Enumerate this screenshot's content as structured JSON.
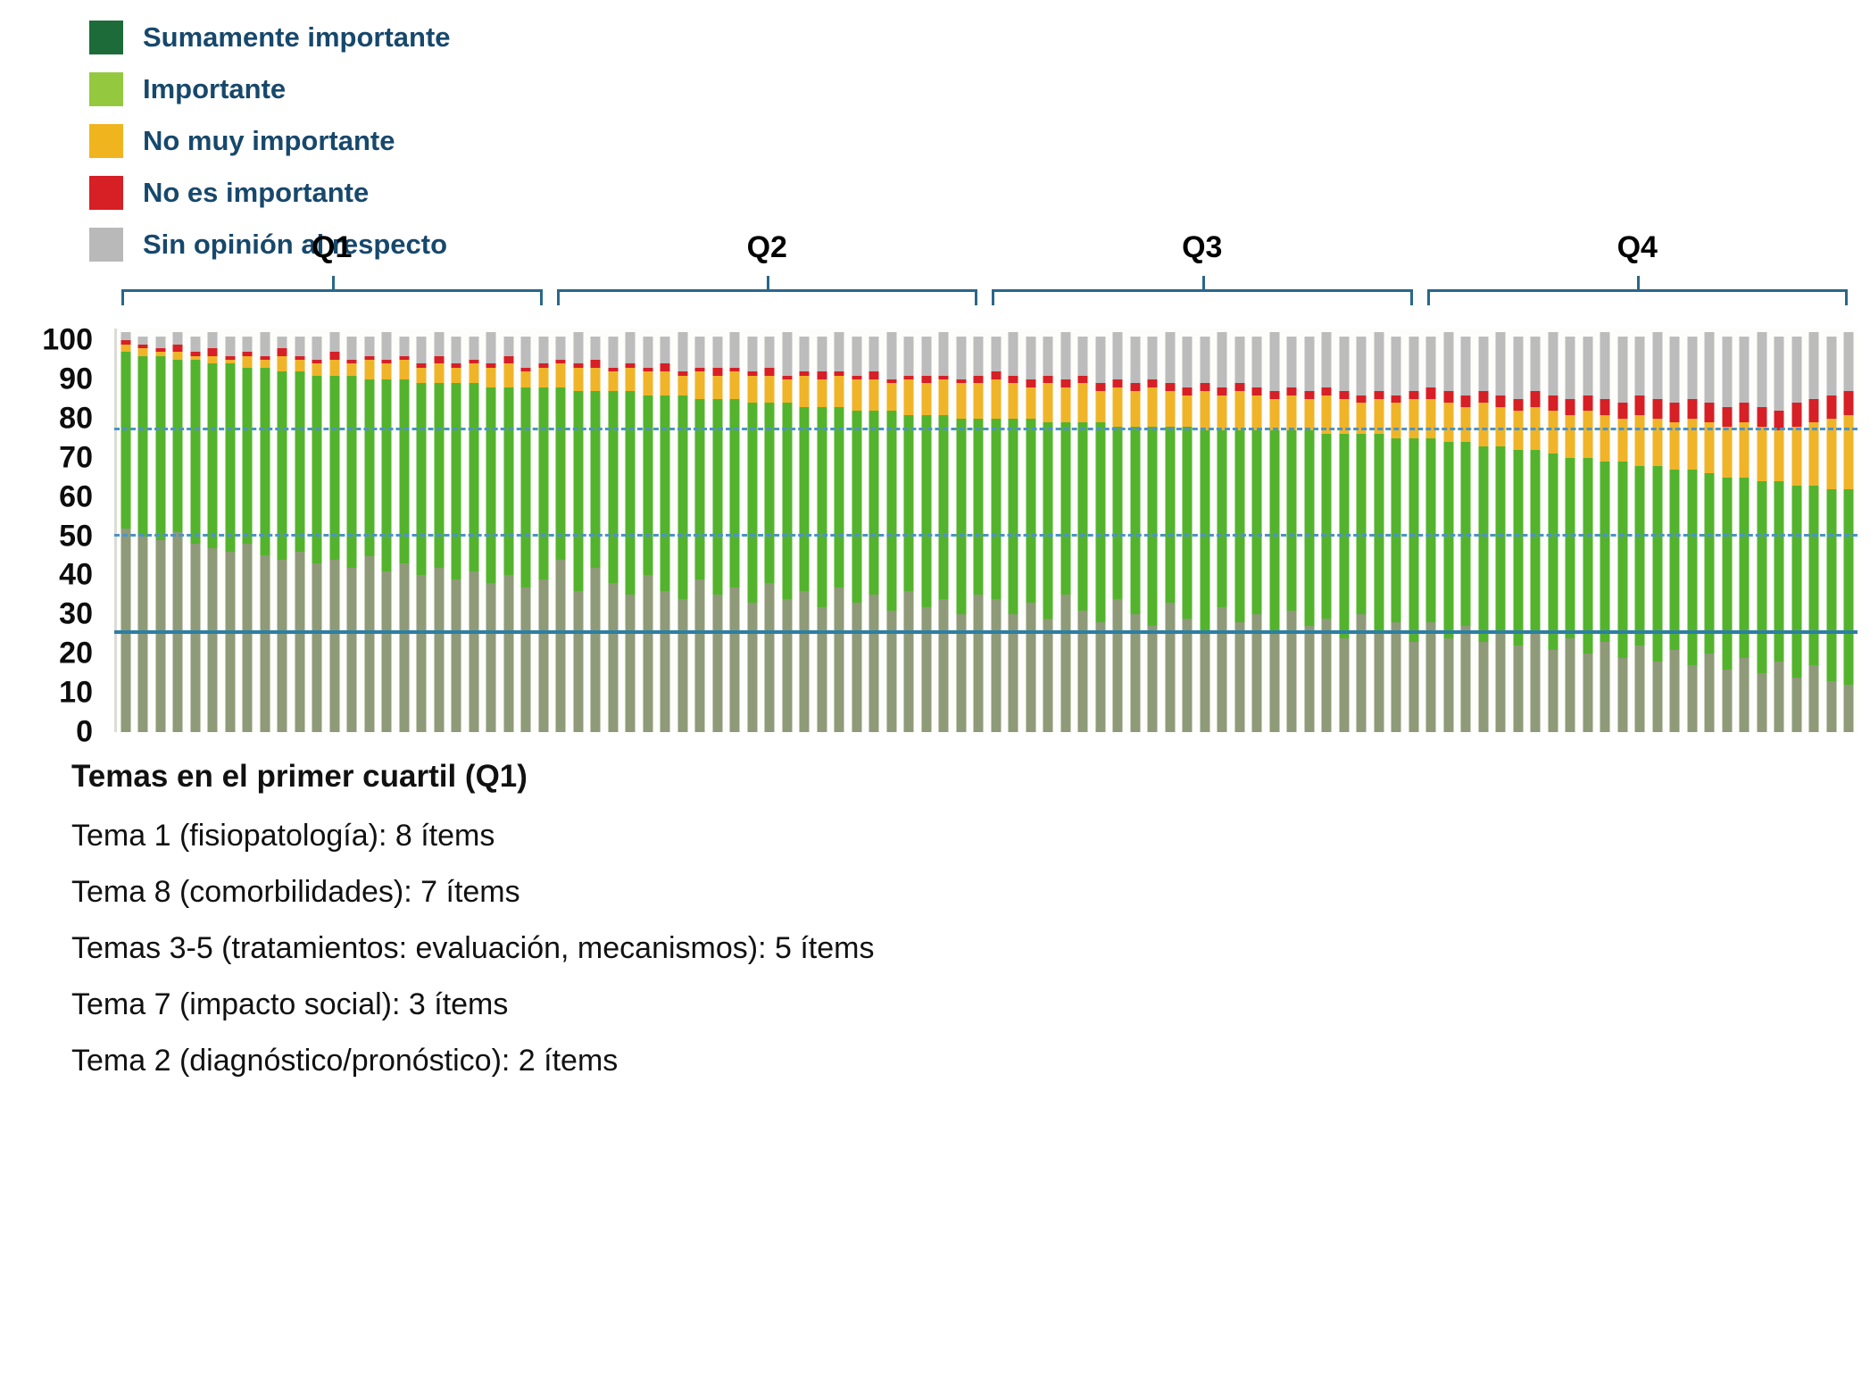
{
  "notes": {
    "title": "Temas en el primer cuartil (Q1)",
    "lines": [
      "Tema 1 (fisiopatología): 8 ítems",
      "Tema 8 (comorbilidades): 7 ítems",
      "Temas 3-5 (tratamientos: evaluación, mecanismos): 5 ítems",
      "Tema 7 (impacto social): 3 ítems",
      "Tema 2 (diagnóstico/pronóstico): 2 ítems"
    ]
  },
  "chart_data": {
    "type": "bar",
    "stacked": true,
    "title": "",
    "xlabel": "",
    "ylabel": "",
    "ylim": [
      0,
      103
    ],
    "yticks": [
      0,
      10,
      20,
      30,
      40,
      50,
      60,
      70,
      80,
      90,
      100
    ],
    "grid": false,
    "legend_position": "top-left",
    "bracket_color": "#29678a",
    "reference_lines": [
      {
        "y": 77,
        "style": "dashed",
        "color": "#4d94c4"
      },
      {
        "y": 50,
        "style": "dashed",
        "color": "#4d94c4"
      },
      {
        "y": 25,
        "style": "solid",
        "color": "#2d7fa3"
      }
    ],
    "quartiles": [
      {
        "label": "Q1",
        "start": 0,
        "end": 24
      },
      {
        "label": "Q2",
        "start": 25,
        "end": 49
      },
      {
        "label": "Q3",
        "start": 50,
        "end": 74
      },
      {
        "label": "Q4",
        "start": 75,
        "end": 99
      }
    ],
    "legend": [
      {
        "label": "Sumamente importante",
        "color": "#1c6b38"
      },
      {
        "label": "Importante",
        "color": "#94c83e"
      },
      {
        "label": "No muy importante",
        "color": "#f0b41e"
      },
      {
        "label": "No es importante",
        "color": "#d71f26"
      },
      {
        "label": "Sin opinión al respecto",
        "color": "#b9b9b9"
      }
    ],
    "series": [
      {
        "name": "Sumamente importante",
        "key": "sumamente",
        "color": "#8f9a78",
        "values": [
          52,
          50,
          49,
          51,
          48,
          47,
          46,
          48,
          45,
          44,
          46,
          43,
          44,
          42,
          45,
          41,
          43,
          40,
          42,
          39,
          41,
          38,
          40,
          37,
          39,
          44,
          36,
          42,
          38,
          35,
          40,
          36,
          34,
          39,
          35,
          37,
          33,
          38,
          34,
          36,
          32,
          37,
          33,
          35,
          31,
          36,
          32,
          34,
          30,
          35,
          34,
          30,
          33,
          29,
          35,
          31,
          28,
          34,
          30,
          27,
          33,
          29,
          26,
          32,
          28,
          30,
          25,
          31,
          27,
          29,
          24,
          30,
          26,
          28,
          23,
          28,
          24,
          27,
          23,
          26,
          22,
          25,
          21,
          24,
          20,
          23,
          19,
          22,
          18,
          21,
          17,
          20,
          16,
          19,
          15,
          18,
          14,
          17,
          13,
          12
        ]
      },
      {
        "name": "Importante",
        "key": "importante",
        "color": "#54b32d",
        "values": [
          45,
          46,
          47,
          44,
          47,
          47,
          48,
          45,
          48,
          48,
          46,
          48,
          47,
          49,
          45,
          49,
          47,
          49,
          47,
          50,
          48,
          50,
          48,
          51,
          49,
          44,
          51,
          45,
          49,
          52,
          46,
          50,
          52,
          46,
          50,
          48,
          51,
          46,
          50,
          47,
          51,
          46,
          49,
          47,
          51,
          45,
          49,
          47,
          50,
          45,
          46,
          50,
          47,
          50,
          44,
          48,
          51,
          44,
          48,
          51,
          45,
          49,
          51,
          45,
          49,
          47,
          52,
          46,
          50,
          47,
          52,
          46,
          50,
          47,
          52,
          47,
          50,
          47,
          50,
          47,
          50,
          47,
          50,
          46,
          50,
          46,
          50,
          46,
          50,
          46,
          50,
          46,
          49,
          46,
          49,
          46,
          49,
          46,
          49,
          50
        ]
      },
      {
        "name": "No muy importante",
        "key": "no-muy-importante",
        "color": "#f0b429",
        "values": [
          2,
          2,
          1,
          2,
          1,
          2,
          1,
          3,
          2,
          4,
          3,
          3,
          4,
          3,
          5,
          4,
          5,
          4,
          5,
          4,
          5,
          5,
          6,
          4,
          5,
          6,
          6,
          6,
          5,
          6,
          6,
          6,
          5,
          7,
          6,
          7,
          7,
          7,
          6,
          8,
          7,
          8,
          8,
          8,
          7,
          9,
          8,
          9,
          9,
          9,
          10,
          9,
          8,
          10,
          9,
          10,
          8,
          10,
          9,
          10,
          9,
          8,
          10,
          9,
          10,
          9,
          8,
          9,
          8,
          10,
          9,
          8,
          9,
          9,
          10,
          10,
          10,
          9,
          11,
          10,
          10,
          11,
          11,
          11,
          12,
          12,
          11,
          13,
          12,
          12,
          13,
          13,
          13,
          14,
          14,
          13,
          15,
          16,
          18,
          19
        ]
      },
      {
        "name": "No es importante",
        "key": "no-es-importante",
        "color": "#d71f26",
        "values": [
          1,
          1,
          1,
          2,
          1,
          2,
          1,
          1,
          1,
          2,
          1,
          1,
          2,
          1,
          1,
          1,
          1,
          1,
          2,
          1,
          1,
          1,
          2,
          1,
          1,
          1,
          1,
          2,
          1,
          1,
          1,
          2,
          1,
          1,
          2,
          1,
          1,
          2,
          1,
          1,
          2,
          1,
          1,
          2,
          1,
          1,
          2,
          1,
          1,
          2,
          2,
          2,
          2,
          2,
          2,
          2,
          2,
          2,
          2,
          2,
          2,
          2,
          2,
          2,
          2,
          2,
          2,
          2,
          2,
          2,
          2,
          2,
          2,
          2,
          2,
          3,
          3,
          3,
          3,
          3,
          3,
          4,
          4,
          4,
          4,
          4,
          4,
          5,
          5,
          5,
          5,
          5,
          5,
          5,
          5,
          5,
          6,
          6,
          6,
          6
        ]
      },
      {
        "name": "Sin opinión al respecto",
        "key": "sin-opinion",
        "color": "#bcbcbc",
        "values": [
          2,
          2,
          3,
          3,
          4,
          4,
          5,
          4,
          6,
          3,
          5,
          6,
          5,
          6,
          5,
          7,
          5,
          7,
          6,
          7,
          6,
          8,
          5,
          8,
          7,
          6,
          8,
          6,
          8,
          8,
          8,
          7,
          10,
          8,
          8,
          9,
          9,
          8,
          11,
          9,
          9,
          10,
          10,
          9,
          12,
          10,
          10,
          11,
          11,
          10,
          9,
          11,
          11,
          10,
          12,
          10,
          12,
          12,
          12,
          11,
          13,
          13,
          12,
          14,
          12,
          13,
          15,
          13,
          14,
          14,
          14,
          15,
          15,
          15,
          14,
          13,
          15,
          15,
          14,
          16,
          16,
          14,
          16,
          16,
          15,
          17,
          17,
          15,
          17,
          17,
          16,
          18,
          18,
          17,
          19,
          19,
          17,
          17,
          15,
          15
        ]
      }
    ]
  }
}
